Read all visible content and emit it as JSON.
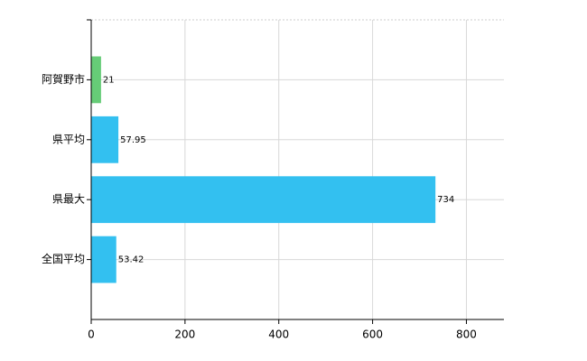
{
  "chart_data": {
    "type": "hbar",
    "categories": [
      "阿賀野市",
      "県平均",
      "県最大",
      "全国平均"
    ],
    "values": [
      21,
      57.95,
      734,
      53.42
    ],
    "colors": [
      "#66cc77",
      "#33c0f0",
      "#33c0f0",
      "#33c0f0"
    ],
    "xlim": [
      0,
      880
    ],
    "xticks": [
      0,
      200,
      400,
      600,
      800
    ],
    "grid": true
  }
}
